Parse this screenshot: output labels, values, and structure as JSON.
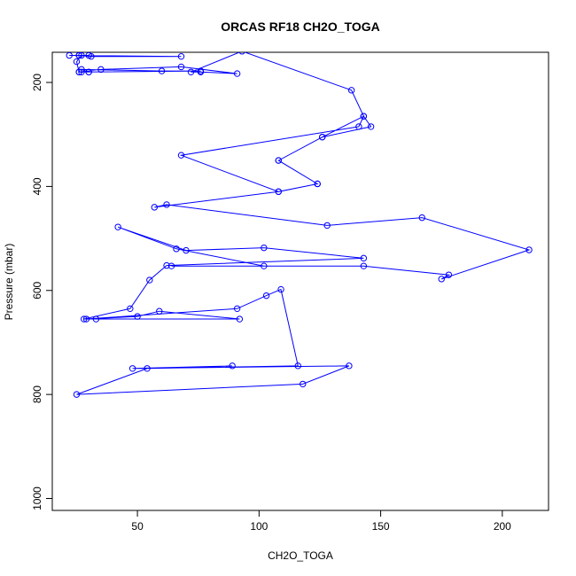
{
  "chart_data": {
    "type": "scatter",
    "title": "ORCAS RF18 CH2O_TOGA",
    "xlabel": "CH2O_TOGA",
    "ylabel": "Pressure (mbar)",
    "xlim": [
      15,
      219
    ],
    "ylim": [
      1023,
      142
    ],
    "y_reversed": true,
    "grid": false,
    "line_color": "#0000ff",
    "x_ticks": [
      50,
      100,
      150,
      200
    ],
    "y_ticks": [
      200,
      400,
      600,
      800,
      1000
    ],
    "series": [
      {
        "x": [
          26,
          31,
          68,
          22,
          26,
          30,
          27,
          25,
          26,
          30,
          30,
          27,
          60,
          76,
          26,
          27,
          35,
          68,
          91,
          76,
          72,
          93,
          138,
          143,
          146,
          126,
          108,
          124,
          108,
          68,
          141,
          143,
          126,
          108,
          124,
          108,
          57,
          62,
          128,
          167,
          211,
          175,
          178,
          143,
          64,
          102,
          66,
          42,
          70,
          102,
          143,
          62,
          55,
          47,
          28,
          33,
          92,
          59,
          50,
          29,
          91,
          103,
          109,
          116,
          54,
          25,
          118,
          137,
          48,
          89
        ],
        "y": [
          148,
          150,
          150,
          148,
          148,
          148,
          148,
          160,
          180,
          180,
          180,
          175,
          178,
          178,
          180,
          180,
          175,
          170,
          183,
          180,
          180,
          140,
          215,
          265,
          285,
          305,
          350,
          395,
          410,
          340,
          285,
          265,
          305,
          350,
          395,
          410,
          440,
          435,
          475,
          460,
          522,
          578,
          570,
          553,
          553,
          553,
          520,
          478,
          523,
          518,
          538,
          552,
          580,
          635,
          655,
          655,
          655,
          640,
          650,
          655,
          635,
          610,
          598,
          745,
          750,
          800,
          780,
          745,
          750,
          745
        ]
      }
    ]
  }
}
